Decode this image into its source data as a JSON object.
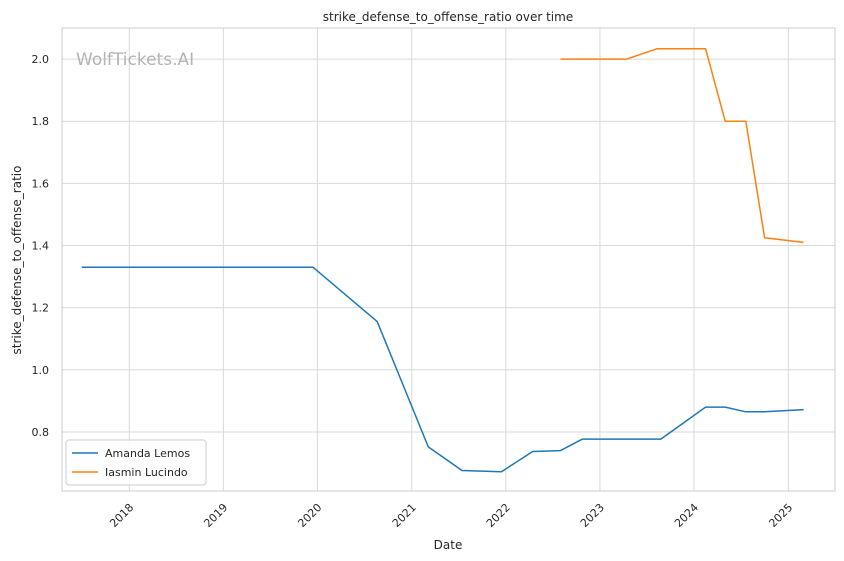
{
  "watermark": "WolfTickets.AI",
  "chart_data": {
    "type": "line",
    "title": "strike_defense_to_offense_ratio over time",
    "xlabel": "Date",
    "ylabel": "strike_defense_to_offense_ratio",
    "xlim": [
      "2017-04-15",
      "2025-07-01"
    ],
    "ylim": [
      0.61,
      2.1
    ],
    "x_ticks": [
      "2018",
      "2019",
      "2020",
      "2021",
      "2022",
      "2023",
      "2024",
      "2025"
    ],
    "y_ticks": [
      "0.8",
      "1.0",
      "1.2",
      "1.4",
      "1.6",
      "1.8",
      "2.0"
    ],
    "grid": true,
    "legend_position": "lower-left",
    "series": [
      {
        "name": "Amanda Lemos",
        "color": "#1f77b4",
        "points": [
          [
            "2017-07-01",
            1.33
          ],
          [
            "2019-12-15",
            1.33
          ],
          [
            "2020-08-20",
            1.155
          ],
          [
            "2021-03-06",
            0.752
          ],
          [
            "2021-07-15",
            0.676
          ],
          [
            "2021-12-15",
            0.672
          ],
          [
            "2022-04-15",
            0.737
          ],
          [
            "2022-08-01",
            0.74
          ],
          [
            "2022-10-25",
            0.777
          ],
          [
            "2023-01-15",
            0.777
          ],
          [
            "2023-08-25",
            0.777
          ],
          [
            "2024-02-15",
            0.88
          ],
          [
            "2024-05-01",
            0.88
          ],
          [
            "2024-07-20",
            0.865
          ],
          [
            "2024-10-01",
            0.865
          ],
          [
            "2025-03-01",
            0.872
          ]
        ]
      },
      {
        "name": "Iasmin Lucindo",
        "color": "#ff7f0e",
        "points": [
          [
            "2022-08-01",
            2.0
          ],
          [
            "2023-04-15",
            2.0
          ],
          [
            "2023-08-10",
            2.033
          ],
          [
            "2024-02-15",
            2.033
          ],
          [
            "2024-05-01",
            1.8
          ],
          [
            "2024-07-20",
            1.8
          ],
          [
            "2024-10-01",
            1.425
          ],
          [
            "2025-03-01",
            1.41
          ]
        ]
      }
    ]
  }
}
